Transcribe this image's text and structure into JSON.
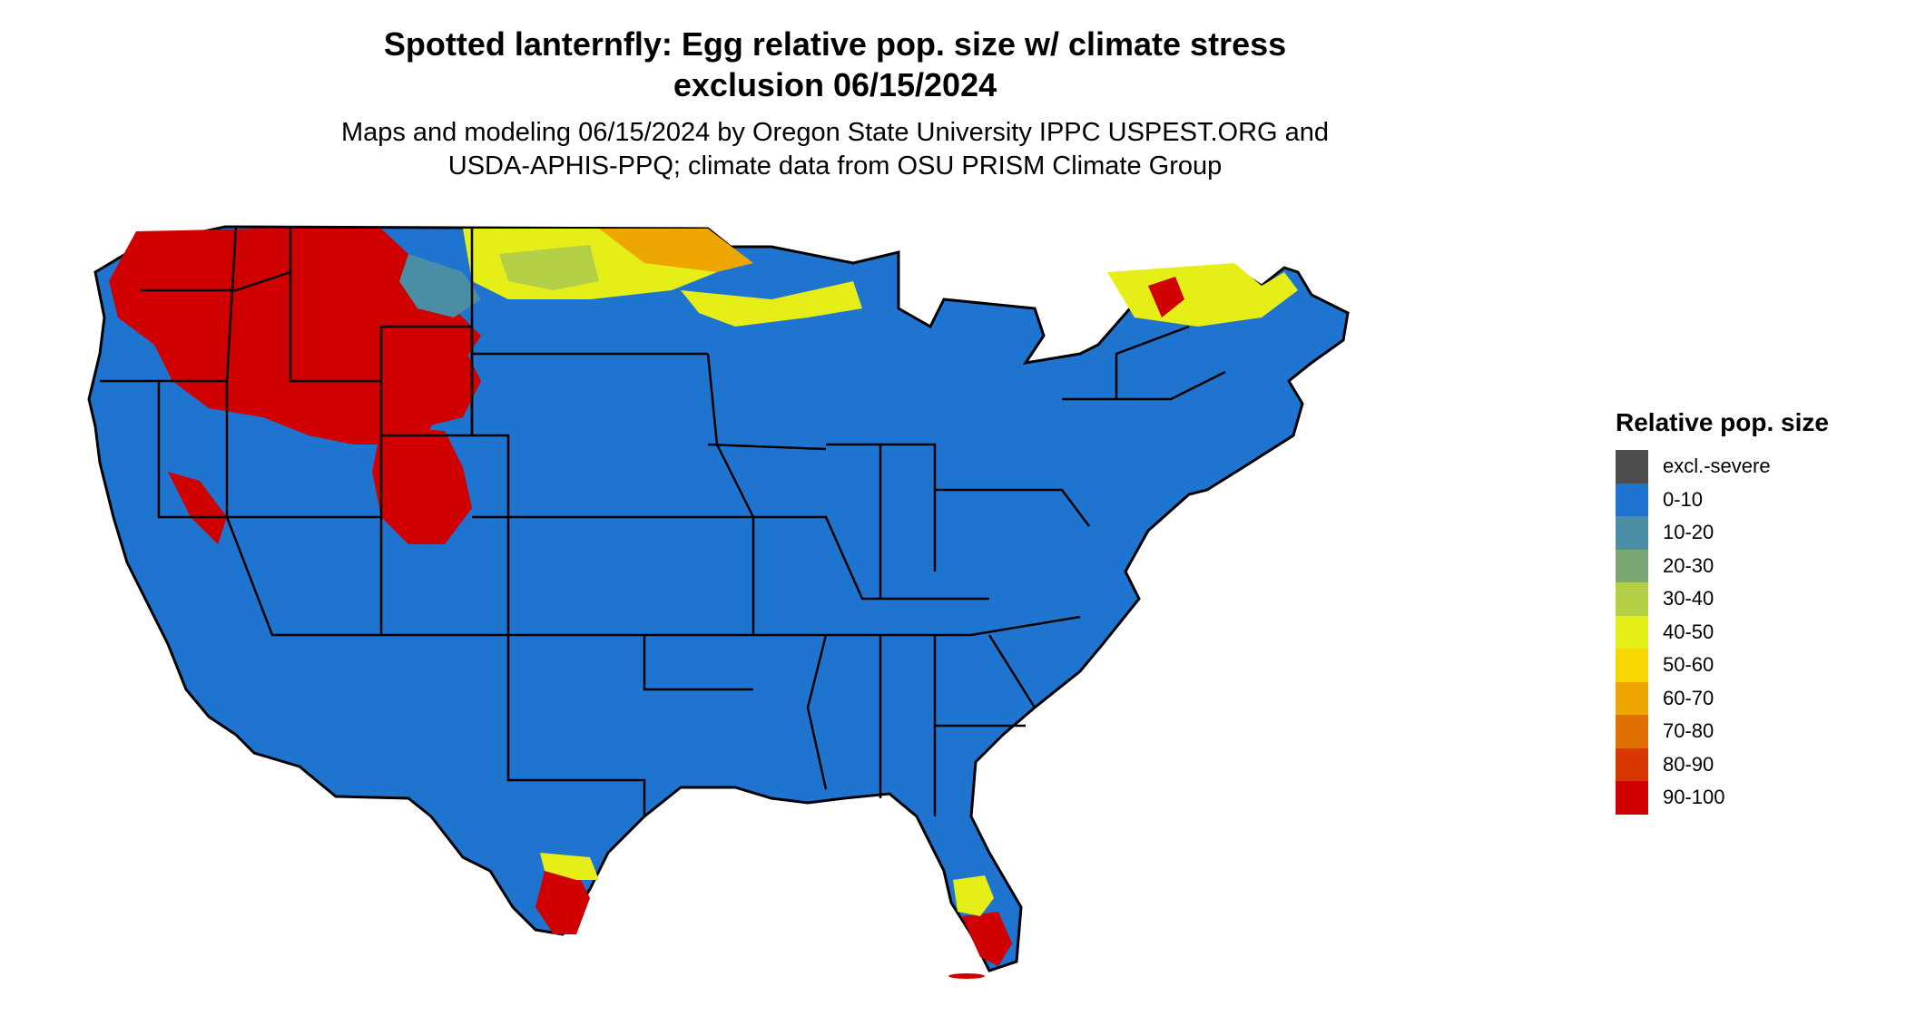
{
  "title_line1": "Spotted lanternfly: Egg relative pop. size w/ climate stress",
  "title_line2": "exclusion 06/15/2024",
  "subtitle_line1": "Maps and modeling 06/15/2024 by Oregon State University IPPC USPEST.ORG and",
  "subtitle_line2": "USDA-APHIS-PPQ; climate data from OSU PRISM Climate Group",
  "legend": {
    "title": "Relative pop. size",
    "items": [
      {
        "label": "excl.-severe",
        "color": "#4d4d4d"
      },
      {
        "label": "0-10",
        "color": "#1f74cf"
      },
      {
        "label": "10-20",
        "color": "#4a8ea6"
      },
      {
        "label": "20-30",
        "color": "#7ca673"
      },
      {
        "label": "30-40",
        "color": "#b3cf45"
      },
      {
        "label": "40-50",
        "color": "#e6ee17"
      },
      {
        "label": "50-60",
        "color": "#f6d800"
      },
      {
        "label": "60-70",
        "color": "#eea600"
      },
      {
        "label": "70-80",
        "color": "#e07000"
      },
      {
        "label": "80-90",
        "color": "#d83800"
      },
      {
        "label": "90-100",
        "color": "#d00000"
      }
    ]
  }
}
